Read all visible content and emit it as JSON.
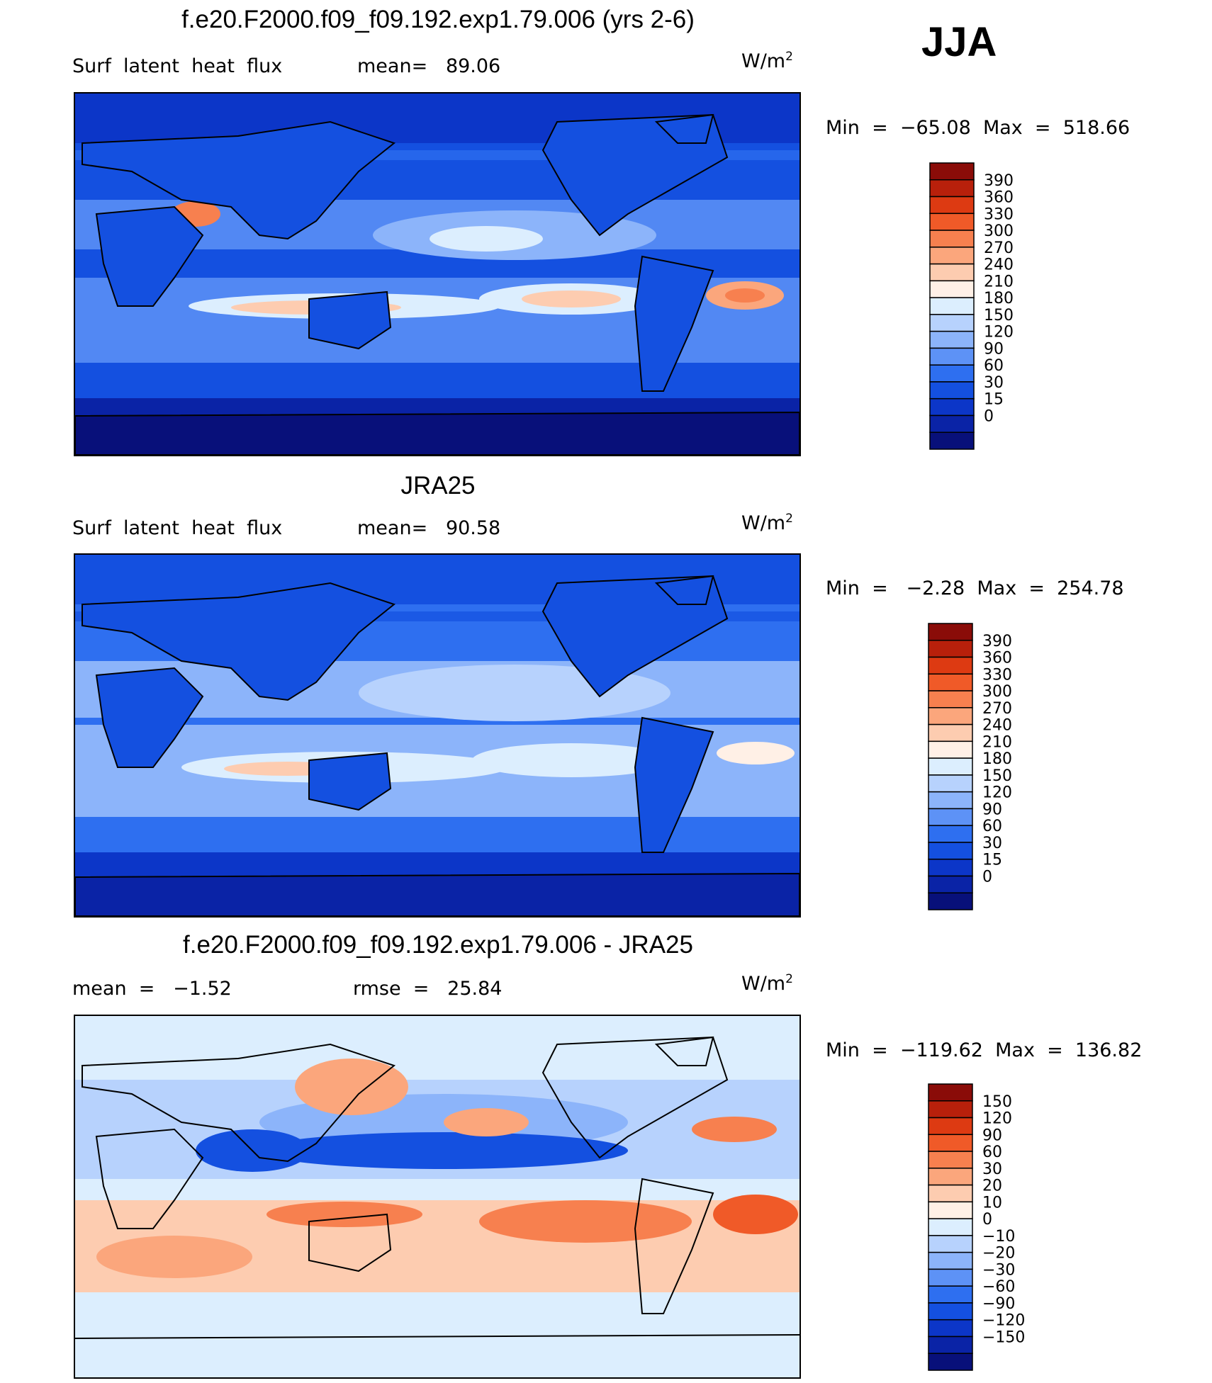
{
  "season": "JJA",
  "panels": [
    {
      "title": "f.e20.F2000.f09_f09.192.exp1.79.006 (yrs 2-6)",
      "left_label": "Surf  latent  heat  flux",
      "mid_label": "mean=   89.06",
      "units": "W/m",
      "units_sup": "2",
      "minmax": "Min  =  −65.08  Max  =  518.66",
      "colorbar": {
        "colors": [
          "#08107a",
          "#0a23a6",
          "#0c36c8",
          "#1450e0",
          "#2e6ff0",
          "#5d92f6",
          "#8cb4fa",
          "#b7d2fd",
          "#dceefe",
          "#fff0e6",
          "#fdccb0",
          "#fba67c",
          "#f7804f",
          "#f05a28",
          "#dd3a12",
          "#b8200b",
          "#8a0c08"
        ],
        "labels": [
          "0",
          "15",
          "30",
          "60",
          "90",
          "120",
          "150",
          "180",
          "210",
          "240",
          "270",
          "300",
          "330",
          "360",
          "390"
        ]
      }
    },
    {
      "title": "JRA25",
      "left_label": "Surf  latent  heat  flux",
      "mid_label": "mean=   90.58",
      "units": "W/m",
      "units_sup": "2",
      "minmax": "Min  =   −2.28  Max  =  254.78",
      "colorbar": {
        "colors": [
          "#08107a",
          "#0a23a6",
          "#0c36c8",
          "#1450e0",
          "#2e6ff0",
          "#5d92f6",
          "#8cb4fa",
          "#b7d2fd",
          "#dceefe",
          "#fff0e6",
          "#fdccb0",
          "#fba67c",
          "#f7804f",
          "#f05a28",
          "#dd3a12",
          "#b8200b",
          "#8a0c08"
        ],
        "labels": [
          "0",
          "15",
          "30",
          "60",
          "90",
          "120",
          "150",
          "180",
          "210",
          "240",
          "270",
          "300",
          "330",
          "360",
          "390"
        ]
      }
    },
    {
      "title": "f.e20.F2000.f09_f09.192.exp1.79.006 - JRA25",
      "left_label": "mean  =   −1.52",
      "mid_label": "rmse  =   25.84",
      "units": "W/m",
      "units_sup": "2",
      "minmax": "Min  =  −119.62  Max  =  136.82",
      "colorbar": {
        "colors": [
          "#08107a",
          "#0a23a6",
          "#0c36c8",
          "#1450e0",
          "#2e6ff0",
          "#5d92f6",
          "#8cb4fa",
          "#b7d2fd",
          "#dceefe",
          "#fff0e6",
          "#fdccb0",
          "#fba67c",
          "#f7804f",
          "#f05a28",
          "#dd3a12",
          "#b8200b",
          "#8a0c08"
        ],
        "labels": [
          "−150",
          "−120",
          "−90",
          "−60",
          "−30",
          "−20",
          "−10",
          "0",
          "10",
          "20",
          "30",
          "60",
          "90",
          "120",
          "150"
        ]
      }
    }
  ]
}
